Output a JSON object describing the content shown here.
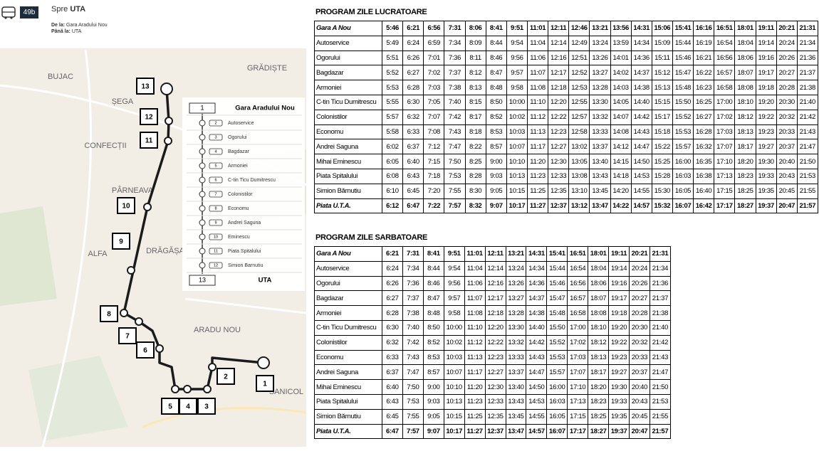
{
  "header": {
    "route": "49b",
    "direction_label": "Spre",
    "direction": "UTA",
    "from_label": "De la:",
    "from": "Gara Aradului Nou",
    "to_label": "Până la:",
    "to": "UTA"
  },
  "map": {
    "places": [
      "BUJAC",
      "ȘEGA",
      "GRĂDIȘTE",
      "CONFECȚII",
      "PÂRNEAVA",
      "ALFA",
      "DRĂGĂȘA",
      "ARADU NOU",
      "SANICOL"
    ],
    "stops": [
      "1",
      "2",
      "3",
      "4",
      "5",
      "6",
      "7",
      "8",
      "9",
      "10",
      "11",
      "12",
      "13"
    ],
    "legend": [
      {
        "number": "1",
        "name": "Gara Aradului Nou"
      },
      {
        "number": "2",
        "name": "Autoservice"
      },
      {
        "number": "3",
        "name": "Ogorului"
      },
      {
        "number": "4",
        "name": "Bagdazar"
      },
      {
        "number": "5",
        "name": "Armoniei"
      },
      {
        "number": "6",
        "name": "C-tin Ticu Dumitrescu"
      },
      {
        "number": "7",
        "name": "Colonistilor"
      },
      {
        "number": "8",
        "name": "Economu"
      },
      {
        "number": "9",
        "name": "Andrei Saguna"
      },
      {
        "number": "10",
        "name": "Eminescu"
      },
      {
        "number": "11",
        "name": "Piata Spitalului"
      },
      {
        "number": "12",
        "name": "Simion Barnutiu"
      },
      {
        "number": "13",
        "name": "UTA"
      }
    ]
  },
  "tables": [
    {
      "title": "PROGRAM ZILE LUCRATOARE",
      "header": [
        "Gara A Nou",
        "5:46",
        "6:21",
        "6:56",
        "7:31",
        "8:06",
        "8:41",
        "9:51",
        "11:01",
        "12:11",
        "12:46",
        "13:21",
        "13:56",
        "14:31",
        "15:06",
        "15:41",
        "16:16",
        "16:51",
        "18:01",
        "19:11",
        "20:21",
        "21:31"
      ],
      "rows": [
        [
          "Autoservice",
          "5:49",
          "6:24",
          "6:59",
          "7:34",
          "8:09",
          "8:44",
          "9:54",
          "11:04",
          "12:14",
          "12:49",
          "13:24",
          "13:59",
          "14:34",
          "15:09",
          "15:44",
          "16:19",
          "16:54",
          "18:04",
          "19:14",
          "20:24",
          "21:34"
        ],
        [
          "Ogorului",
          "5:51",
          "6:26",
          "7:01",
          "7:36",
          "8:11",
          "8:46",
          "9:56",
          "11:06",
          "12:16",
          "12:51",
          "13:26",
          "14:01",
          "14:36",
          "15:11",
          "15:46",
          "16:21",
          "16:56",
          "18:06",
          "19:16",
          "20:26",
          "21:36"
        ],
        [
          "Bagdazar",
          "5:52",
          "6:27",
          "7:02",
          "7:37",
          "8:12",
          "8:47",
          "9:57",
          "11:07",
          "12:17",
          "12:52",
          "13:27",
          "14:02",
          "14:37",
          "15:12",
          "15:47",
          "16:22",
          "16:57",
          "18:07",
          "19:17",
          "20:27",
          "21:37"
        ],
        [
          "Armoniei",
          "5:53",
          "6:28",
          "7:03",
          "7:38",
          "8:13",
          "8:48",
          "9:58",
          "11:08",
          "12:18",
          "12:53",
          "13:28",
          "14:03",
          "14:38",
          "15:13",
          "15:48",
          "16:23",
          "16:58",
          "18:08",
          "19:18",
          "20:28",
          "21:38"
        ],
        [
          "C-tin Ticu Dumitrescu",
          "5:55",
          "6:30",
          "7:05",
          "7:40",
          "8:15",
          "8:50",
          "10:00",
          "11:10",
          "12:20",
          "12:55",
          "13:30",
          "14:05",
          "14:40",
          "15:15",
          "15:50",
          "16:25",
          "17:00",
          "18:10",
          "19:20",
          "20:30",
          "21:40"
        ],
        [
          "Colonistilor",
          "5:57",
          "6:32",
          "7:07",
          "7:42",
          "8:17",
          "8:52",
          "10:02",
          "11:12",
          "12:22",
          "12:57",
          "13:32",
          "14:07",
          "14:42",
          "15:17",
          "15:52",
          "16:27",
          "17:02",
          "18:12",
          "19:22",
          "20:32",
          "21:42"
        ],
        [
          "Economu",
          "5:58",
          "6:33",
          "7:08",
          "7:43",
          "8:18",
          "8:53",
          "10:03",
          "11:13",
          "12:23",
          "12:58",
          "13:33",
          "14:08",
          "14:43",
          "15:18",
          "15:53",
          "16:28",
          "17:03",
          "18:13",
          "19:23",
          "20:33",
          "21:43"
        ],
        [
          "Andrei Saguna",
          "6:02",
          "6:37",
          "7:12",
          "7:47",
          "8:22",
          "8:57",
          "10:07",
          "11:17",
          "12:27",
          "13:02",
          "13:37",
          "14:12",
          "14:47",
          "15:22",
          "15:57",
          "16:32",
          "17:07",
          "18:17",
          "19:27",
          "20:37",
          "21:47"
        ],
        [
          "Mihai Eminescu",
          "6:05",
          "6:40",
          "7:15",
          "7:50",
          "8:25",
          "9:00",
          "10:10",
          "11:20",
          "12:30",
          "13:05",
          "13:40",
          "14:15",
          "14:50",
          "15:25",
          "16:00",
          "16:35",
          "17:10",
          "18:20",
          "19:30",
          "20:40",
          "21:50"
        ],
        [
          "Piata Spitalului",
          "6:08",
          "6:43",
          "7:18",
          "7:53",
          "8:28",
          "9:03",
          "10:13",
          "11:23",
          "12:33",
          "13:08",
          "13:43",
          "14:18",
          "14:53",
          "15:28",
          "16:03",
          "16:38",
          "17:13",
          "18:23",
          "19:33",
          "20:43",
          "21:53"
        ],
        [
          "Simion Bărnutiu",
          "6:10",
          "6:45",
          "7:20",
          "7:55",
          "8:30",
          "9:05",
          "10:15",
          "11:25",
          "12:35",
          "13:10",
          "13:45",
          "14:20",
          "14:55",
          "15:30",
          "16:05",
          "16:40",
          "17:15",
          "18:25",
          "19:35",
          "20:45",
          "21:55"
        ],
        [
          "Piata U.T.A.",
          "6:12",
          "6:47",
          "7:22",
          "7:57",
          "8:32",
          "9:07",
          "10:17",
          "11:27",
          "12:37",
          "13:12",
          "13:47",
          "14:22",
          "14:57",
          "15:32",
          "16:07",
          "16:42",
          "17:17",
          "18:27",
          "19:37",
          "20:47",
          "21:57"
        ]
      ]
    },
    {
      "title": "PROGRAM ZILE SARBATOARE",
      "header": [
        "Gara A Nou",
        "6:21",
        "7:31",
        "8:41",
        "9:51",
        "11:01",
        "12:11",
        "13:21",
        "14:31",
        "15:41",
        "16:51",
        "18:01",
        "19:11",
        "20:21",
        "21:31"
      ],
      "rows": [
        [
          "Autoservice",
          "6:24",
          "7:34",
          "8:44",
          "9:54",
          "11:04",
          "12:14",
          "13:24",
          "14:34",
          "15:44",
          "16:54",
          "18:04",
          "19:14",
          "20:24",
          "21:34"
        ],
        [
          "Ogorului",
          "6:26",
          "7:36",
          "8:46",
          "9:56",
          "11:06",
          "12:16",
          "13:26",
          "14:36",
          "15:46",
          "16:56",
          "18:06",
          "19:16",
          "20:26",
          "21:36"
        ],
        [
          "Bagdazar",
          "6:27",
          "7:37",
          "8:47",
          "9:57",
          "11:07",
          "12:17",
          "13:27",
          "14:37",
          "15:47",
          "16:57",
          "18:07",
          "19:17",
          "20:27",
          "21:37"
        ],
        [
          "Armoniei",
          "6:28",
          "7:38",
          "8:48",
          "9:58",
          "11:08",
          "12:18",
          "13:28",
          "14:38",
          "15:48",
          "16:58",
          "18:08",
          "19:18",
          "20:28",
          "21:38"
        ],
        [
          "C-tin Ticu Dumitrescu",
          "6:30",
          "7:40",
          "8:50",
          "10:00",
          "11:10",
          "12:20",
          "13:30",
          "14:40",
          "15:50",
          "17:00",
          "18:10",
          "19:20",
          "20:30",
          "21:40"
        ],
        [
          "Colonistilor",
          "6:32",
          "7:42",
          "8:52",
          "10:02",
          "11:12",
          "12:22",
          "13:32",
          "14:42",
          "15:52",
          "17:02",
          "18:12",
          "19:22",
          "20:32",
          "21:42"
        ],
        [
          "Economu",
          "6:33",
          "7:43",
          "8:53",
          "10:03",
          "11:13",
          "12:23",
          "13:33",
          "14:43",
          "15:53",
          "17:03",
          "18:13",
          "19:23",
          "20:33",
          "21:43"
        ],
        [
          "Andrei Saguna",
          "6:37",
          "7:47",
          "8:57",
          "10:07",
          "11:17",
          "12:27",
          "13:37",
          "14:47",
          "15:57",
          "17:07",
          "18:17",
          "19:27",
          "20:37",
          "21:47"
        ],
        [
          "Mihai Eminescu",
          "6:40",
          "7:50",
          "9:00",
          "10:10",
          "11:20",
          "12:30",
          "13:40",
          "14:50",
          "16:00",
          "17:10",
          "18:20",
          "19:30",
          "20:40",
          "21:50"
        ],
        [
          "Piata Spitalului",
          "6:43",
          "7:53",
          "9:03",
          "10:13",
          "11:23",
          "12:33",
          "13:43",
          "14:53",
          "16:03",
          "17:13",
          "18:23",
          "19:33",
          "20:43",
          "21:53"
        ],
        [
          "Simion Bărnutiu",
          "6:45",
          "7:55",
          "9:05",
          "10:15",
          "11:25",
          "12:35",
          "13:45",
          "14:55",
          "16:05",
          "17:15",
          "18:25",
          "19:35",
          "20:45",
          "21:55"
        ],
        [
          "Piata U.T.A.",
          "6:47",
          "7:57",
          "9:07",
          "10:17",
          "11:27",
          "12:37",
          "13:47",
          "14:57",
          "16:07",
          "17:17",
          "18:27",
          "19:37",
          "20:47",
          "21:57"
        ]
      ]
    }
  ]
}
